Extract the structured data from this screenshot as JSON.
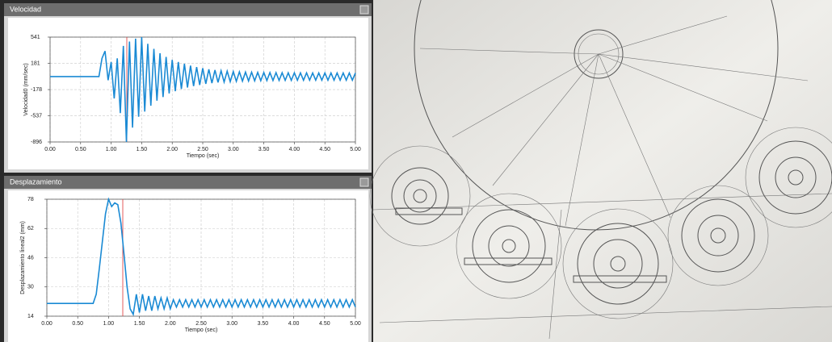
{
  "chart_data": [
    {
      "type": "line",
      "title": "Velocidad",
      "x_label": "Tiempo (sec)",
      "y_label": "Velocidad0 (mm/sec)",
      "xlim": [
        0,
        5
      ],
      "ylim": [
        -896,
        541
      ],
      "grid": true,
      "xticks": [
        {
          "value": 0,
          "label": "0.00"
        },
        {
          "value": 0.5,
          "label": "0.50"
        },
        {
          "value": 1,
          "label": "1.00"
        },
        {
          "value": 1.5,
          "label": "1.50"
        },
        {
          "value": 2,
          "label": "2.00"
        },
        {
          "value": 2.5,
          "label": "2.50"
        },
        {
          "value": 3,
          "label": "3.00"
        },
        {
          "value": 3.5,
          "label": "3.50"
        },
        {
          "value": 4,
          "label": "4.00"
        },
        {
          "value": 4.5,
          "label": "4.50"
        },
        {
          "value": 5,
          "label": "5.00"
        }
      ],
      "yticks": [
        -896,
        -537,
        -178,
        181,
        541
      ],
      "x": [
        0,
        0.8,
        0.85,
        0.9,
        0.95,
        1.0,
        1.05,
        1.1,
        1.15,
        1.2,
        1.25,
        1.3,
        1.35,
        1.4,
        1.45,
        1.5,
        1.55,
        1.6,
        1.65,
        1.7,
        1.75,
        1.8,
        1.85,
        1.9,
        1.95,
        2.0,
        2.05,
        2.1,
        2.15,
        2.2,
        2.25,
        2.3,
        2.35,
        2.4,
        2.45,
        2.5,
        2.55,
        2.6,
        2.65,
        2.7,
        2.75,
        2.8,
        2.85,
        2.9,
        2.95,
        3.0,
        3.05,
        3.1,
        3.15,
        3.2,
        3.25,
        3.3,
        3.35,
        3.4,
        3.45,
        3.5,
        3.55,
        3.6,
        3.65,
        3.7,
        3.75,
        3.8,
        3.85,
        3.9,
        3.95,
        4.0,
        4.05,
        4.1,
        4.15,
        4.2,
        4.25,
        4.3,
        4.35,
        4.4,
        4.45,
        4.5,
        4.55,
        4.6,
        4.65,
        4.7,
        4.75,
        4.8,
        4.85,
        4.9,
        4.95,
        5.0
      ],
      "series": [
        {
          "color": "#1a8ad4",
          "values": [
            0,
            0,
            250,
            350,
            -50,
            200,
            -300,
            250,
            -500,
            420,
            -896,
            480,
            -700,
            520,
            -550,
            541,
            -480,
            450,
            -400,
            380,
            -330,
            320,
            -280,
            270,
            -230,
            230,
            -200,
            200,
            -170,
            175,
            -150,
            150,
            -130,
            130,
            -115,
            115,
            -100,
            100,
            -90,
            90,
            -80,
            80,
            -75,
            75,
            -70,
            70,
            -65,
            65,
            -62,
            62,
            -60,
            60,
            -58,
            58,
            -56,
            56,
            -55,
            55,
            -54,
            54,
            -53,
            53,
            -52,
            52,
            -52,
            52,
            -51,
            51,
            -51,
            51,
            -50,
            50,
            -50,
            50,
            -50,
            50,
            -50,
            50,
            -50,
            50,
            -50,
            50,
            -50,
            50,
            -50,
            50
          ]
        }
      ]
    },
    {
      "type": "line",
      "title": "Desplazamiento",
      "x_label": "Tiempo (sec)",
      "y_label": "Desplazamiento lineal2 (mm)",
      "xlim": [
        0,
        5
      ],
      "ylim": [
        14,
        78
      ],
      "grid": true,
      "xticks": [
        {
          "value": 0,
          "label": "0.00"
        },
        {
          "value": 0.5,
          "label": "0.50"
        },
        {
          "value": 1,
          "label": "1.00"
        },
        {
          "value": 1.5,
          "label": "1.50"
        },
        {
          "value": 2,
          "label": "2.00"
        },
        {
          "value": 2.5,
          "label": "2.50"
        },
        {
          "value": 3,
          "label": "3.00"
        },
        {
          "value": 3.5,
          "label": "3.50"
        },
        {
          "value": 4,
          "label": "4.00"
        },
        {
          "value": 4.5,
          "label": "4.50"
        },
        {
          "value": 5,
          "label": "5.00"
        }
      ],
      "yticks": [
        14,
        30,
        46,
        62,
        78
      ],
      "x": [
        0,
        0.75,
        0.8,
        0.85,
        0.9,
        0.95,
        1.0,
        1.05,
        1.1,
        1.15,
        1.2,
        1.25,
        1.3,
        1.35,
        1.4,
        1.45,
        1.5,
        1.55,
        1.6,
        1.65,
        1.7,
        1.75,
        1.8,
        1.85,
        1.9,
        1.95,
        2.0,
        2.05,
        2.1,
        2.15,
        2.2,
        2.25,
        2.3,
        2.35,
        2.4,
        2.45,
        2.5,
        2.55,
        2.6,
        2.65,
        2.7,
        2.75,
        2.8,
        2.85,
        2.9,
        2.95,
        3.0,
        3.05,
        3.1,
        3.15,
        3.2,
        3.25,
        3.3,
        3.35,
        3.4,
        3.45,
        3.5,
        3.55,
        3.6,
        3.65,
        3.7,
        3.75,
        3.8,
        3.85,
        3.9,
        3.95,
        4.0,
        4.05,
        4.1,
        4.15,
        4.2,
        4.25,
        4.3,
        4.35,
        4.4,
        4.45,
        4.5,
        4.55,
        4.6,
        4.65,
        4.7,
        4.75,
        4.8,
        4.85,
        4.9,
        4.95,
        5.0
      ],
      "series": [
        {
          "color": "#1a8ad4",
          "values": [
            21,
            21,
            26,
            40,
            55,
            70,
            78,
            74,
            76,
            75,
            65,
            48,
            30,
            18,
            15,
            26,
            16,
            26,
            17,
            25,
            17,
            25,
            18,
            24,
            18,
            24,
            18,
            23,
            19,
            23,
            19,
            23,
            19,
            23,
            19,
            23,
            19,
            23,
            19,
            23,
            19,
            23,
            19,
            23,
            19,
            23,
            19,
            23,
            19,
            23,
            19,
            23,
            19,
            23,
            19,
            23,
            19,
            23,
            19,
            23,
            19,
            23,
            19,
            23,
            19,
            23,
            19,
            23,
            19,
            23,
            19,
            23,
            19,
            23,
            19,
            23,
            19,
            23,
            19,
            23,
            19,
            23,
            19,
            23,
            19,
            23,
            19
          ]
        }
      ]
    }
  ]
}
